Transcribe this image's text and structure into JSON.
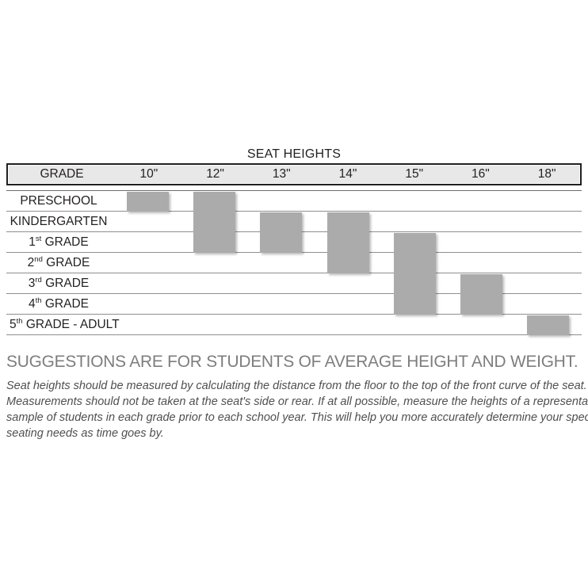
{
  "chart_title": "SEAT HEIGHTS",
  "table": {
    "columns": [
      "GRADE",
      "10\"",
      "12\"",
      "13\"",
      "14\"",
      "15\"",
      "16\"",
      "18\""
    ],
    "column_ids": [
      "grade",
      "10in",
      "12in",
      "13in",
      "14in",
      "15in",
      "16in",
      "18in"
    ],
    "rows": [
      {
        "id": "preschool",
        "main": "PRESCHOOL",
        "sup": "",
        "rest": ""
      },
      {
        "id": "kindergarten",
        "main": "KINDERGARTEN",
        "sup": "",
        "rest": ""
      },
      {
        "id": "grade-1",
        "main": "1",
        "sup": "st",
        "rest": " GRADE"
      },
      {
        "id": "grade-2",
        "main": "2",
        "sup": "nd",
        "rest": " GRADE"
      },
      {
        "id": "grade-3",
        "main": "3",
        "sup": "rd",
        "rest": " GRADE"
      },
      {
        "id": "grade-4",
        "main": "4",
        "sup": "th",
        "rest": " GRADE"
      },
      {
        "id": "grade-5-adult",
        "main": "5",
        "sup": "th",
        "rest": " GRADE - ADULT"
      }
    ]
  },
  "chart_data": {
    "type": "table",
    "title": "SEAT HEIGHTS",
    "columns": [
      "GRADE",
      "10\"",
      "12\"",
      "13\"",
      "14\"",
      "15\"",
      "16\"",
      "18\""
    ],
    "categories": [
      "PRESCHOOL",
      "KINDERGARTEN",
      "1st GRADE",
      "2nd GRADE",
      "3rd GRADE",
      "4th GRADE",
      "5th GRADE - ADULT"
    ],
    "bars": [
      {
        "id": "10in",
        "seat_height": "10\"",
        "col_index": 0,
        "row_start": 0,
        "row_end": 0,
        "grades": [
          "PRESCHOOL"
        ]
      },
      {
        "id": "12in",
        "seat_height": "12\"",
        "col_index": 1,
        "row_start": 0,
        "row_end": 2,
        "grades": [
          "PRESCHOOL",
          "KINDERGARTEN",
          "1st GRADE"
        ]
      },
      {
        "id": "13in",
        "seat_height": "13\"",
        "col_index": 2,
        "row_start": 1,
        "row_end": 2,
        "grades": [
          "KINDERGARTEN",
          "1st GRADE"
        ]
      },
      {
        "id": "14in",
        "seat_height": "14\"",
        "col_index": 3,
        "row_start": 1,
        "row_end": 3,
        "grades": [
          "KINDERGARTEN",
          "1st GRADE",
          "2nd GRADE"
        ]
      },
      {
        "id": "15in",
        "seat_height": "15\"",
        "col_index": 4,
        "row_start": 2,
        "row_end": 5,
        "grades": [
          "1st GRADE",
          "2nd GRADE",
          "3rd GRADE",
          "4th GRADE"
        ]
      },
      {
        "id": "16in",
        "seat_height": "16\"",
        "col_index": 5,
        "row_start": 4,
        "row_end": 5,
        "grades": [
          "3rd GRADE",
          "4th GRADE"
        ]
      },
      {
        "id": "18in",
        "seat_height": "18\"",
        "col_index": 6,
        "row_start": 6,
        "row_end": 6,
        "grades": [
          "5th GRADE - ADULT"
        ]
      }
    ],
    "bar_color": "#ababab",
    "header_bg": "#e8e8e8",
    "grid": true,
    "legend": false
  },
  "note": {
    "heading": "SUGGESTIONS ARE FOR STUDENTS OF AVERAGE HEIGHT AND WEIGHT.",
    "lines": [
      "Seat heights should be measured by calculating the distance from the floor to the top of the front curve of the seat.",
      "Measurements should not be taken at the seat's side or rear.  If at all possible, measure the heights of a representative",
      "sample of students in each grade prior to each school year.  This will help you more accurately determine your specific",
      "seating needs as time goes by."
    ]
  },
  "colors": {
    "bar": "#ababab",
    "header_bg": "#e8e8e8",
    "heading_text": "#7d7d7d",
    "note_text": "#4f4f4f",
    "table_text": "#231f20",
    "grid_line": "#8f8f8f"
  }
}
